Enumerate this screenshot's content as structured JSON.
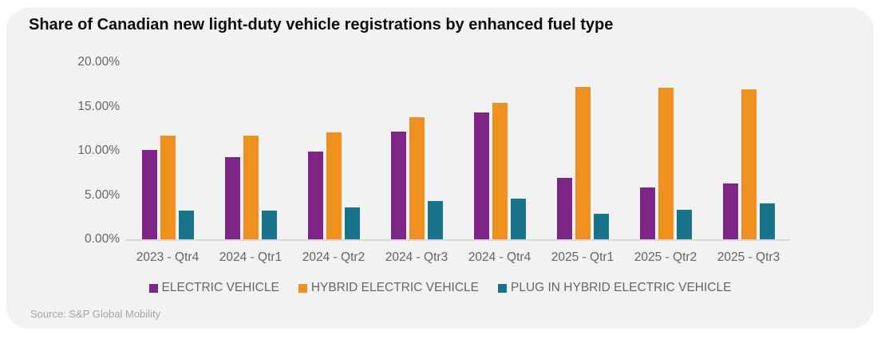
{
  "title": "Share of Canadian new light-duty vehicle registrations by enhanced fuel type",
  "source": "Source: S&P Global Mobility",
  "colors": {
    "card_bg": "#f2f2f2",
    "axis_line": "#d9d9d9",
    "tick_text": "#676767",
    "legend_text": "#666666",
    "source_text": "#a6a6a6",
    "title_text": "#0d0d0d"
  },
  "chart_data": {
    "type": "bar",
    "categories": [
      "2023 - Qtr4",
      "2024 - Qtr1",
      "2024 - Qtr2",
      "2024 - Qtr3",
      "2024 - Qtr4",
      "2025 - Qtr1",
      "2025 - Qtr2",
      "2025 - Qtr3"
    ],
    "series": [
      {
        "name": "ELECTRIC VEHICLE",
        "color": "#7d2687",
        "values": [
          10.1,
          9.3,
          9.9,
          12.2,
          14.3,
          6.9,
          5.9,
          6.3
        ]
      },
      {
        "name": "HYBRID ELECTRIC VEHICLE",
        "color": "#f0901d",
        "values": [
          11.7,
          11.7,
          12.1,
          13.8,
          15.4,
          17.2,
          17.1,
          16.9
        ]
      },
      {
        "name": "PLUG IN HYBRID ELECTRIC VEHICLE",
        "color": "#16758a",
        "values": [
          3.2,
          3.2,
          3.6,
          4.3,
          4.6,
          2.9,
          3.3,
          4.1
        ]
      }
    ],
    "title": "Share of Canadian new light-duty vehicle registrations by enhanced fuel type",
    "xlabel": "",
    "ylabel": "",
    "ylim": [
      0,
      20
    ],
    "y_ticks": [
      {
        "label": "20.00%",
        "value": 20
      },
      {
        "label": "15.00%",
        "value": 15
      },
      {
        "label": "10.00%",
        "value": 10
      },
      {
        "label": "5.00%",
        "value": 5
      },
      {
        "label": "0.00%",
        "value": 0
      }
    ],
    "grid": false,
    "legend_position": "bottom"
  }
}
